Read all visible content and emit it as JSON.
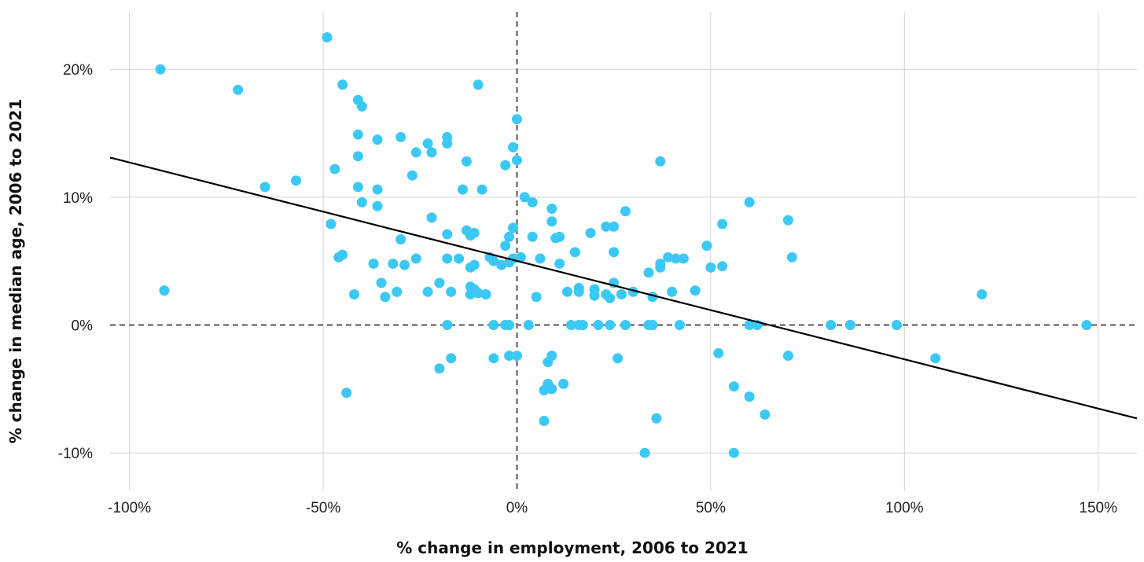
{
  "chart_data": {
    "type": "scatter",
    "xlabel": "% change in employment, 2006 to 2021",
    "ylabel": "% change in median age, 2006 to 2021",
    "xlim": [
      -105,
      160
    ],
    "ylim": [
      -13,
      24.5
    ],
    "x_ticks": [
      {
        "value": -100,
        "label": "-100%"
      },
      {
        "value": -50,
        "label": "-50%"
      },
      {
        "value": 0,
        "label": "0%"
      },
      {
        "value": 50,
        "label": "50%"
      },
      {
        "value": 100,
        "label": "100%"
      },
      {
        "value": 150,
        "label": "150%"
      }
    ],
    "y_ticks": [
      {
        "value": -10,
        "label": "-10%"
      },
      {
        "value": 0,
        "label": "0%"
      },
      {
        "value": 10,
        "label": "10%"
      },
      {
        "value": 20,
        "label": "20%"
      }
    ],
    "grid": true,
    "reference_lines": {
      "x": 0,
      "y": 0,
      "style": "dashed"
    },
    "trendline": {
      "x": [
        -105,
        160
      ],
      "y": [
        13.1,
        -7.3
      ]
    },
    "colors": {
      "points": "#3cc8f5",
      "trendline": "#000000",
      "reference": "#777777",
      "grid": "#d4d4d4"
    },
    "points": [
      [
        -92,
        20.0
      ],
      [
        -91,
        2.7
      ],
      [
        -72,
        18.4
      ],
      [
        -65,
        10.8
      ],
      [
        -57,
        11.3
      ],
      [
        -49,
        22.5
      ],
      [
        -47,
        12.2
      ],
      [
        -48,
        7.9
      ],
      [
        -46,
        5.3
      ],
      [
        -45,
        5.5
      ],
      [
        -45,
        18.8
      ],
      [
        -44,
        -5.3
      ],
      [
        -42,
        2.4
      ],
      [
        -41,
        17.6
      ],
      [
        -40,
        17.1
      ],
      [
        -41,
        14.9
      ],
      [
        -41,
        13.2
      ],
      [
        -41,
        10.8
      ],
      [
        -40,
        9.6
      ],
      [
        -37,
        4.8
      ],
      [
        -36,
        14.5
      ],
      [
        -36,
        10.6
      ],
      [
        -36,
        9.3
      ],
      [
        -35,
        3.3
      ],
      [
        -34,
        2.2
      ],
      [
        -32,
        4.8
      ],
      [
        -31,
        2.6
      ],
      [
        -30,
        14.7
      ],
      [
        -30,
        6.7
      ],
      [
        -29,
        4.7
      ],
      [
        -27,
        11.7
      ],
      [
        -26,
        13.5
      ],
      [
        -26,
        5.2
      ],
      [
        -23,
        14.2
      ],
      [
        -22,
        13.5
      ],
      [
        -22,
        8.4
      ],
      [
        -23,
        2.6
      ],
      [
        -20,
        3.3
      ],
      [
        -20,
        -3.4
      ],
      [
        -18,
        14.7
      ],
      [
        -18,
        14.2
      ],
      [
        -18,
        7.1
      ],
      [
        -18,
        5.2
      ],
      [
        -18,
        0.0
      ],
      [
        -17,
        -2.6
      ],
      [
        -17,
        2.6
      ],
      [
        -15,
        5.2
      ],
      [
        -14,
        10.6
      ],
      [
        -13,
        12.8
      ],
      [
        -13,
        7.4
      ],
      [
        -12,
        7.0
      ],
      [
        -11,
        7.2
      ],
      [
        -11,
        4.7
      ],
      [
        -12,
        4.5
      ],
      [
        -12,
        3.0
      ],
      [
        -11,
        2.8
      ],
      [
        -12,
        2.4
      ],
      [
        -10,
        2.5
      ],
      [
        -10,
        18.8
      ],
      [
        -9,
        10.6
      ],
      [
        -8,
        2.4
      ],
      [
        -7,
        5.3
      ],
      [
        -6,
        5.0
      ],
      [
        -6,
        0.0
      ],
      [
        -6,
        -2.6
      ],
      [
        -4,
        4.7
      ],
      [
        -3,
        6.2
      ],
      [
        -3,
        12.5
      ],
      [
        -3,
        0.0
      ],
      [
        -2,
        6.9
      ],
      [
        -2,
        4.9
      ],
      [
        -2,
        0.0
      ],
      [
        -2,
        -2.4
      ],
      [
        -1,
        13.9
      ],
      [
        -1,
        7.6
      ],
      [
        -1,
        5.2
      ],
      [
        0,
        12.9
      ],
      [
        0,
        16.1
      ],
      [
        0,
        -2.4
      ],
      [
        1,
        5.3
      ],
      [
        2,
        10.0
      ],
      [
        3,
        0.0
      ],
      [
        4,
        9.6
      ],
      [
        4,
        6.9
      ],
      [
        5,
        2.2
      ],
      [
        6,
        5.2
      ],
      [
        7,
        -7.5
      ],
      [
        7,
        -5.1
      ],
      [
        8,
        -2.9
      ],
      [
        8,
        -4.6
      ],
      [
        9,
        -5.0
      ],
      [
        9,
        8.1
      ],
      [
        9,
        9.1
      ],
      [
        9,
        -2.4
      ],
      [
        10,
        6.8
      ],
      [
        11,
        4.8
      ],
      [
        11,
        6.9
      ],
      [
        12,
        -4.6
      ],
      [
        13,
        2.6
      ],
      [
        14,
        0.0
      ],
      [
        15,
        5.7
      ],
      [
        16,
        0.0
      ],
      [
        16,
        2.9
      ],
      [
        16,
        2.6
      ],
      [
        17,
        0.0
      ],
      [
        19,
        7.2
      ],
      [
        20,
        2.8
      ],
      [
        20,
        2.3
      ],
      [
        21,
        0.0
      ],
      [
        23,
        7.7
      ],
      [
        23,
        2.4
      ],
      [
        24,
        2.1
      ],
      [
        24,
        0.0
      ],
      [
        25,
        7.7
      ],
      [
        25,
        3.3
      ],
      [
        25,
        5.7
      ],
      [
        26,
        -2.6
      ],
      [
        27,
        2.4
      ],
      [
        28,
        0.0
      ],
      [
        28,
        8.9
      ],
      [
        30,
        2.6
      ],
      [
        33,
        -10.0
      ],
      [
        34,
        0.0
      ],
      [
        34,
        4.1
      ],
      [
        35,
        2.2
      ],
      [
        35,
        0.0
      ],
      [
        36,
        -7.3
      ],
      [
        37,
        4.5
      ],
      [
        37,
        4.8
      ],
      [
        37,
        12.8
      ],
      [
        39,
        5.3
      ],
      [
        40,
        2.6
      ],
      [
        41,
        5.2
      ],
      [
        42,
        0.0
      ],
      [
        43,
        5.2
      ],
      [
        46,
        2.7
      ],
      [
        49,
        6.2
      ],
      [
        50,
        4.5
      ],
      [
        52,
        -2.2
      ],
      [
        53,
        7.9
      ],
      [
        53,
        4.6
      ],
      [
        56,
        -4.8
      ],
      [
        56,
        -10.0
      ],
      [
        60,
        9.6
      ],
      [
        60,
        -5.6
      ],
      [
        60,
        0.0
      ],
      [
        62,
        0.0
      ],
      [
        64,
        -7.0
      ],
      [
        70,
        -2.4
      ],
      [
        70,
        8.2
      ],
      [
        71,
        5.3
      ],
      [
        81,
        0.0
      ],
      [
        86,
        0.0
      ],
      [
        98,
        0.0
      ],
      [
        108,
        -2.6
      ],
      [
        120,
        2.4
      ],
      [
        147,
        0.0
      ]
    ]
  }
}
